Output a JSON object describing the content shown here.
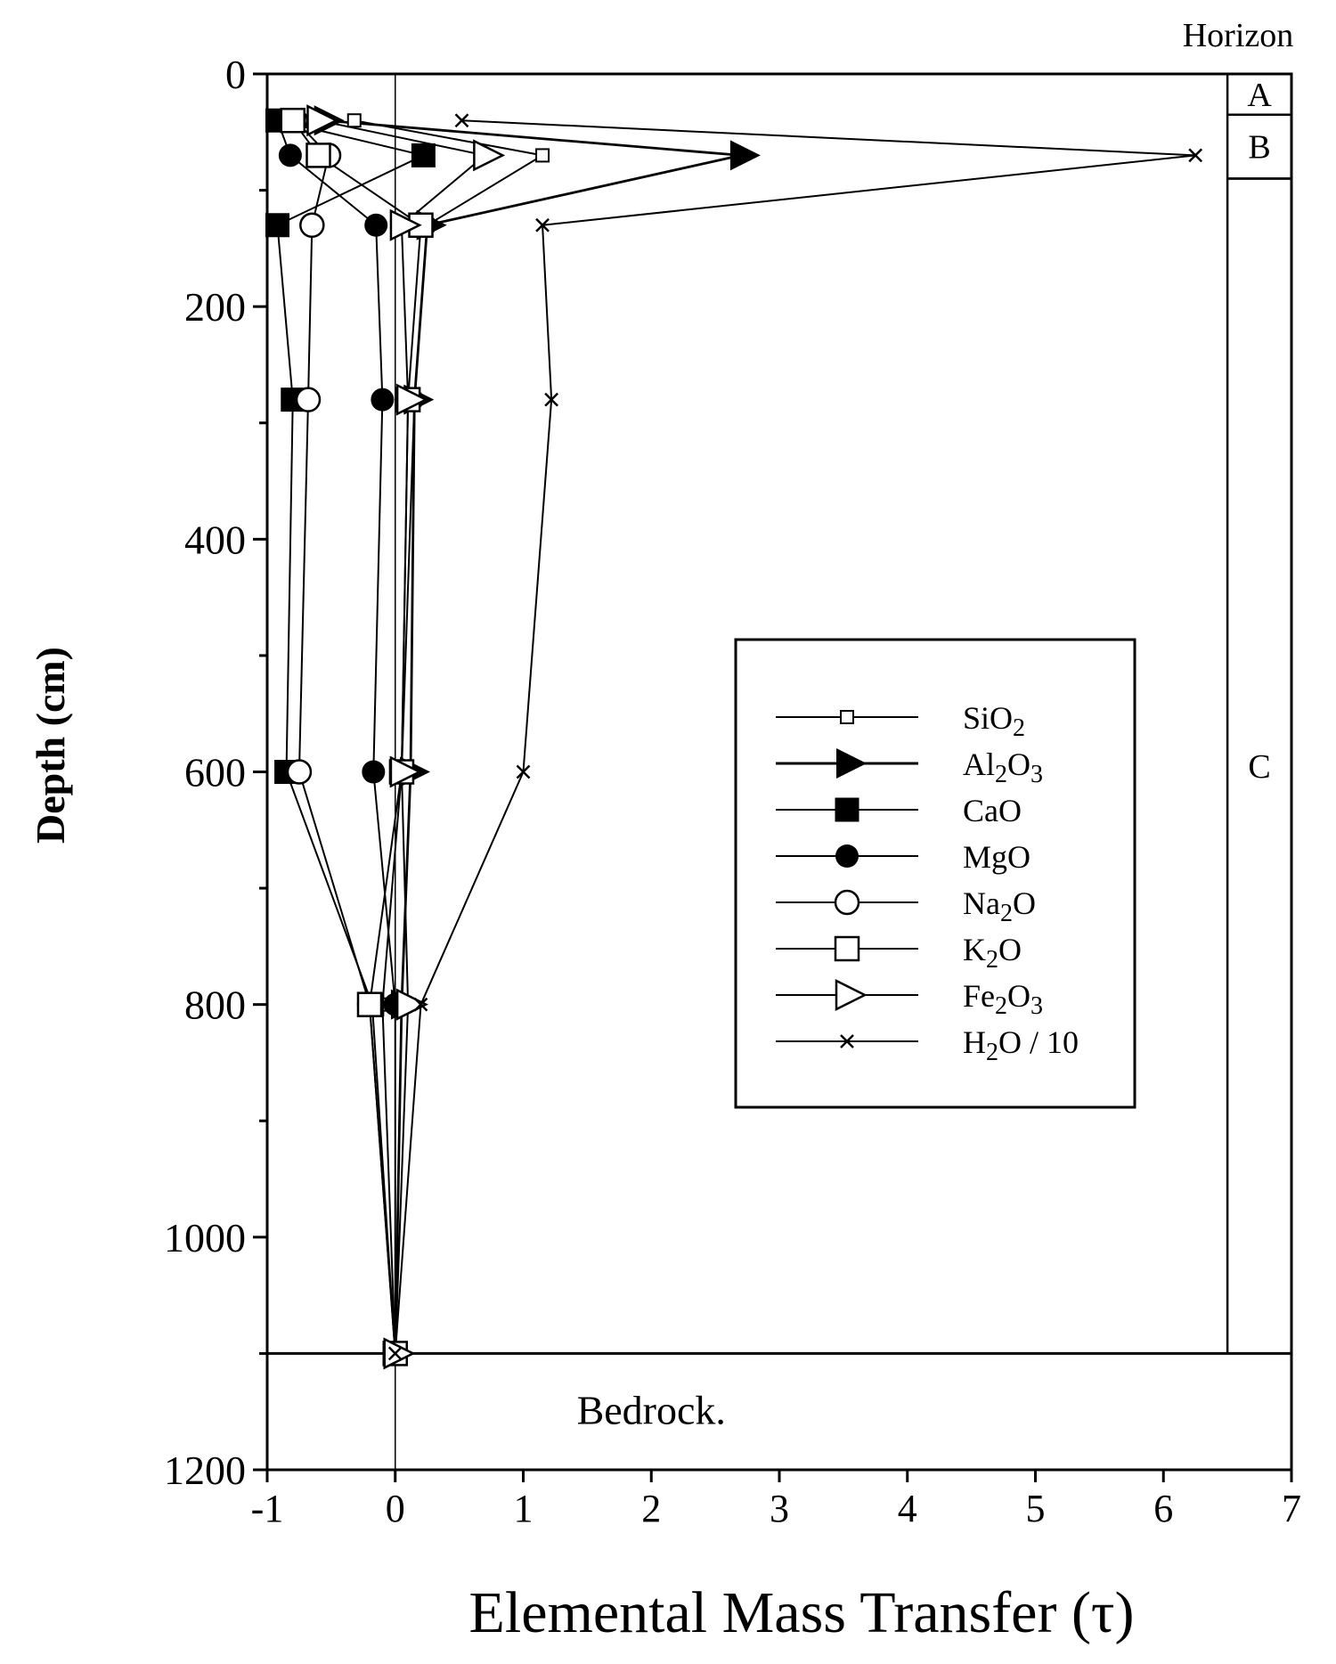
{
  "chart_data": {
    "type": "line",
    "xlabel": "Elemental Mass Transfer (τ)",
    "ylabel": "Depth (cm)",
    "xlim": [
      -1,
      7
    ],
    "ylim": [
      0,
      1200
    ],
    "x_ticks": [
      "-1",
      "0",
      "1",
      "2",
      "3",
      "4",
      "5",
      "6",
      "7"
    ],
    "y_ticks": [
      "0",
      "200",
      "400",
      "600",
      "800",
      "1000",
      "1200"
    ],
    "y_inverted": true,
    "grid": false,
    "legend_position": "right-middle",
    "horizon_title": "Horizon",
    "horizons": [
      {
        "label": "A",
        "from": 0,
        "to": 35
      },
      {
        "label": "B",
        "from": 35,
        "to": 90
      },
      {
        "label": "C",
        "from": 90,
        "to": 1100
      }
    ],
    "bedrock_label": "Bedrock.",
    "bedrock_top": 1100,
    "series": [
      {
        "name": "SiO2",
        "legend": [
          "SiO",
          "2",
          ""
        ],
        "marker": "small-open-square",
        "points": [
          [
            -0.32,
            40
          ],
          [
            1.15,
            70
          ],
          [
            0.25,
            130
          ],
          [
            0.15,
            280
          ],
          [
            0.05,
            600
          ],
          [
            -0.1,
            800
          ],
          [
            0,
            1100
          ]
        ]
      },
      {
        "name": "Al2O3",
        "legend": [
          "Al",
          "2",
          "O",
          "3",
          ""
        ],
        "marker": "filled-triangle",
        "points": [
          [
            -0.55,
            40
          ],
          [
            2.7,
            70
          ],
          [
            0.25,
            130
          ],
          [
            0.15,
            280
          ],
          [
            0.12,
            600
          ],
          [
            0.05,
            800
          ],
          [
            0,
            1100
          ]
        ]
      },
      {
        "name": "CaO",
        "legend": [
          "CaO"
        ],
        "marker": "filled-square",
        "points": [
          [
            -0.92,
            40
          ],
          [
            0.22,
            70
          ],
          [
            -0.92,
            130
          ],
          [
            -0.8,
            280
          ],
          [
            -0.85,
            600
          ],
          [
            -0.18,
            800
          ],
          [
            0,
            1100
          ]
        ]
      },
      {
        "name": "MgO",
        "legend": [
          "MgO"
        ],
        "marker": "filled-circle",
        "points": [
          [
            -0.92,
            40
          ],
          [
            -0.82,
            70
          ],
          [
            -0.15,
            130
          ],
          [
            -0.1,
            280
          ],
          [
            -0.17,
            600
          ],
          [
            0,
            800
          ],
          [
            0,
            1100
          ]
        ]
      },
      {
        "name": "Na2O",
        "legend": [
          "Na",
          "2",
          "O"
        ],
        "marker": "open-circle",
        "points": [
          [
            -0.78,
            40
          ],
          [
            -0.52,
            70
          ],
          [
            -0.65,
            130
          ],
          [
            -0.68,
            280
          ],
          [
            -0.75,
            600
          ],
          [
            -0.2,
            800
          ],
          [
            0,
            1100
          ]
        ]
      },
      {
        "name": "K2O",
        "legend": [
          "K",
          "2",
          "O"
        ],
        "marker": "open-square",
        "points": [
          [
            -0.8,
            40
          ],
          [
            -0.6,
            70
          ],
          [
            0.2,
            130
          ],
          [
            0.1,
            280
          ],
          [
            0.05,
            600
          ],
          [
            -0.2,
            800
          ],
          [
            0,
            1100
          ]
        ]
      },
      {
        "name": "Fe2O3",
        "legend": [
          "Fe",
          "2",
          "O",
          "3",
          ""
        ],
        "marker": "open-triangle",
        "points": [
          [
            -0.6,
            40
          ],
          [
            0.7,
            70
          ],
          [
            0.05,
            130
          ],
          [
            0.1,
            280
          ],
          [
            0.05,
            600
          ],
          [
            0.1,
            800
          ],
          [
            0,
            1100
          ]
        ]
      },
      {
        "name": "H2O / 10",
        "legend": [
          "H",
          "2",
          "O / 10"
        ],
        "marker": "x",
        "points": [
          [
            0.52,
            40
          ],
          [
            6.25,
            70
          ],
          [
            1.15,
            130
          ],
          [
            1.22,
            280
          ],
          [
            1.0,
            600
          ],
          [
            0.2,
            800
          ],
          [
            0,
            1100
          ]
        ]
      }
    ]
  }
}
